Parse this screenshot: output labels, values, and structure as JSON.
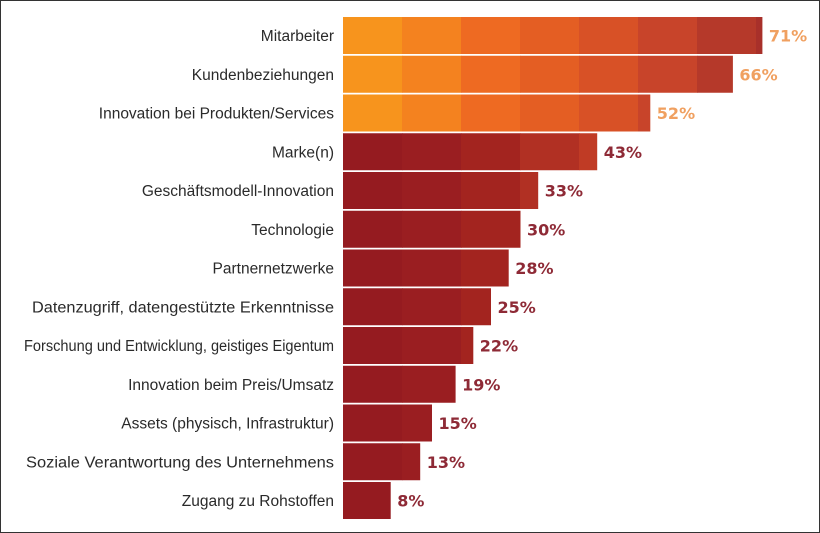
{
  "chart_data": {
    "type": "bar",
    "orientation": "horizontal",
    "categories": [
      "Mitarbeiter",
      "Kundenbeziehungen",
      "Innovation bei Produkten/Services",
      "Marke(n)",
      "Geschäftsmodell-Innovation",
      "Technologie",
      "Partnernetzwerke",
      "Datenzugriff, datengestützte Erkenntnisse",
      "Forschung und Entwicklung, geistiges Eigentum",
      "Innovation beim Preis/Umsatz",
      "Assets (physisch, Infrastruktur)",
      "Soziale Verantwortung des Unternehmens",
      "Zugang zu Rohstoffen"
    ],
    "values": [
      71,
      66,
      52,
      43,
      33,
      30,
      28,
      25,
      22,
      19,
      15,
      13,
      8
    ],
    "value_labels": [
      "71%",
      "66%",
      "52%",
      "43%",
      "33%",
      "30%",
      "28%",
      "25%",
      "22%",
      "19%",
      "15%",
      "13%",
      "8%"
    ],
    "highlighted_count": 3,
    "xlim": [
      0,
      75
    ],
    "grid": false,
    "colors": {
      "highlight_segments": [
        "#f7941d",
        "#f4821f",
        "#ee6a22",
        "#e45e23",
        "#d85126",
        "#c8442a",
        "#b5392a",
        "#a8302a"
      ],
      "base_segments": [
        "#951b20",
        "#9a1e21",
        "#a3241f",
        "#b13023",
        "#c03b25",
        "#c8442a",
        "#cf4a2a",
        "#d5502a"
      ],
      "highlight_label": "#f0a060",
      "base_label": "#8e2a36"
    }
  }
}
